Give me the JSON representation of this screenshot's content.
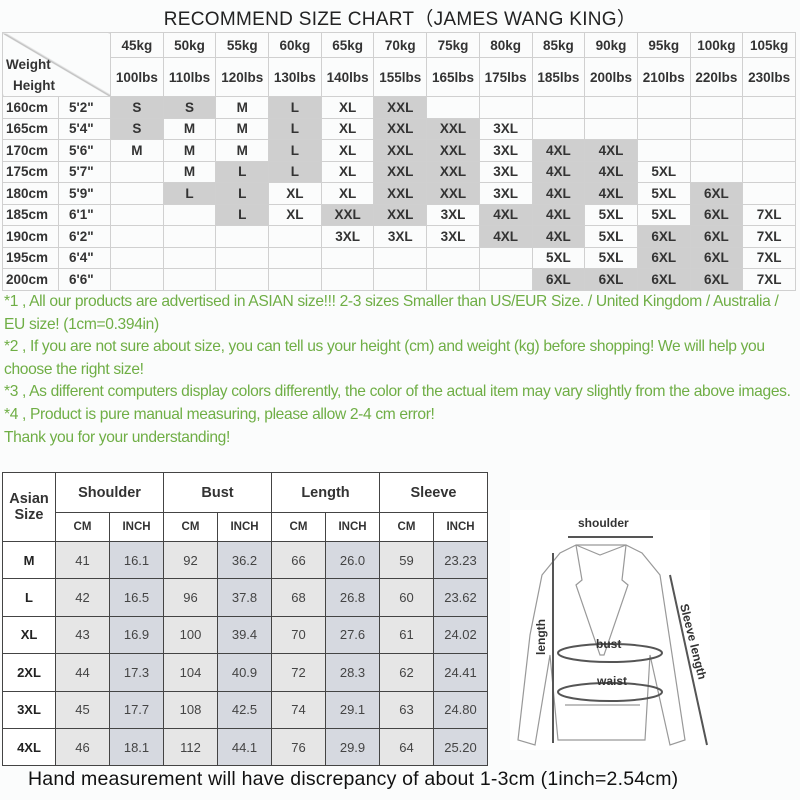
{
  "title": "RECOMMEND SIZE CHART（JAMES WANG KING）",
  "size_chart": {
    "corner_weight": "Weight",
    "corner_height": "Height",
    "weights_kg": [
      "45kg",
      "50kg",
      "55kg",
      "60kg",
      "65kg",
      "70kg",
      "75kg",
      "80kg",
      "85kg",
      "90kg",
      "95kg",
      "100kg",
      "105kg"
    ],
    "weights_lbs": [
      "100lbs",
      "110lbs",
      "120lbs",
      "130lbs",
      "140lbs",
      "155lbs",
      "165lbs",
      "175lbs",
      "185lbs",
      "200lbs",
      "210lbs",
      "220lbs",
      "230lbs"
    ],
    "rows": [
      {
        "cm": "160cm",
        "ft": "5'2\"",
        "sizes": [
          "S",
          "S",
          "M",
          "L",
          "XL",
          "XXL",
          "",
          "",
          "",
          "",
          "",
          "",
          ""
        ]
      },
      {
        "cm": "165cm",
        "ft": "5'4\"",
        "sizes": [
          "S",
          "M",
          "M",
          "L",
          "XL",
          "XXL",
          "XXL",
          "3XL",
          "",
          "",
          "",
          "",
          ""
        ]
      },
      {
        "cm": "170cm",
        "ft": "5'6\"",
        "sizes": [
          "M",
          "M",
          "M",
          "L",
          "XL",
          "XXL",
          "XXL",
          "3XL",
          "4XL",
          "4XL",
          "",
          "",
          ""
        ]
      },
      {
        "cm": "175cm",
        "ft": "5'7\"",
        "sizes": [
          "",
          "M",
          "L",
          "L",
          "XL",
          "XXL",
          "XXL",
          "3XL",
          "4XL",
          "4XL",
          "5XL",
          "",
          ""
        ]
      },
      {
        "cm": "180cm",
        "ft": "5'9\"",
        "sizes": [
          "",
          "L",
          "L",
          "XL",
          "XL",
          "XXL",
          "XXL",
          "3XL",
          "4XL",
          "4XL",
          "5XL",
          "6XL",
          ""
        ]
      },
      {
        "cm": "185cm",
        "ft": "6'1\"",
        "sizes": [
          "",
          "",
          "L",
          "XL",
          "XXL",
          "XXL",
          "3XL",
          "4XL",
          "4XL",
          "5XL",
          "5XL",
          "6XL",
          "7XL"
        ]
      },
      {
        "cm": "190cm",
        "ft": "6'2\"",
        "sizes": [
          "",
          "",
          "",
          "",
          "3XL",
          "3XL",
          "3XL",
          "4XL",
          "4XL",
          "5XL",
          "6XL",
          "6XL",
          "7XL"
        ]
      },
      {
        "cm": "195cm",
        "ft": "6'4\"",
        "sizes": [
          "",
          "",
          "",
          "",
          "",
          "",
          "",
          "",
          "5XL",
          "5XL",
          "6XL",
          "6XL",
          "7XL"
        ]
      },
      {
        "cm": "200cm",
        "ft": "6'6\"",
        "sizes": [
          "",
          "",
          "",
          "",
          "",
          "",
          "",
          "",
          "6XL",
          "6XL",
          "6XL",
          "6XL",
          "7XL"
        ]
      }
    ]
  },
  "notes": [
    "*1 , All our products are advertised in ASIAN size!!! 2-3 sizes Smaller than US/EUR Size. / United Kingdom / Australia / EU size! (1cm=0.394in)",
    "*2 , If you are not sure about size, you can tell us your height (cm) and weight (kg) before shopping! We will help you choose the right size!",
    "*3 , As different computers display colors differently, the color of the actual item may vary slightly from the above images.",
    "*4 , Product is pure manual measuring, please allow 2-4 cm error!",
    "Thank you for your understanding!"
  ],
  "measure_table": {
    "size_header": [
      "Asian",
      "Size"
    ],
    "groups": [
      "Shoulder",
      "Bust",
      "Length",
      "Sleeve"
    ],
    "units": [
      "CM",
      "INCH"
    ],
    "rows": [
      {
        "size": "M",
        "values": [
          "41",
          "16.1",
          "92",
          "36.2",
          "66",
          "26.0",
          "59",
          "23.23"
        ]
      },
      {
        "size": "L",
        "values": [
          "42",
          "16.5",
          "96",
          "37.8",
          "68",
          "26.8",
          "60",
          "23.62"
        ]
      },
      {
        "size": "XL",
        "values": [
          "43",
          "16.9",
          "100",
          "39.4",
          "70",
          "27.6",
          "61",
          "24.02"
        ]
      },
      {
        "size": "2XL",
        "values": [
          "44",
          "17.3",
          "104",
          "40.9",
          "72",
          "28.3",
          "62",
          "24.41"
        ]
      },
      {
        "size": "3XL",
        "values": [
          "45",
          "17.7",
          "108",
          "42.5",
          "74",
          "29.1",
          "63",
          "24.80"
        ]
      },
      {
        "size": "4XL",
        "values": [
          "46",
          "18.1",
          "112",
          "44.1",
          "76",
          "29.9",
          "64",
          "25.20"
        ]
      }
    ]
  },
  "diagram": {
    "shoulder": "shoulder",
    "length": "length",
    "bust": "bust",
    "waist": "waist",
    "sleeve": "Sleeve length"
  },
  "footer": "Hand measurement will have discrepancy of about 1-3cm (1inch=2.54cm)",
  "colors": {
    "note_text": "#6fae45",
    "shaded_cell": "#cfcfcf",
    "cm_cell": "#e6e6e6",
    "inch_cell": "#d6d9e0"
  }
}
